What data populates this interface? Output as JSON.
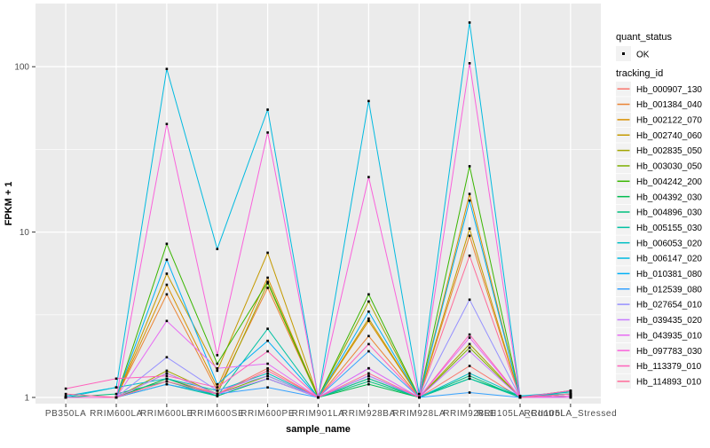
{
  "chart_data": {
    "type": "line",
    "title": "",
    "xlabel": "sample_name",
    "ylabel": "FPKM + 1",
    "y_scale": "log10",
    "y_ticks": [
      "1",
      "10",
      "100"
    ],
    "y_tick_values": [
      1,
      10,
      100
    ],
    "y_minor_values": [
      3.162,
      31.62
    ],
    "ylim": [
      1,
      240
    ],
    "grid": "white major+minor gridlines on gray panel",
    "legend_position": "right",
    "point_marker": "small black square on every data point",
    "x_categories": [
      "PB350LA",
      "RRIM600LA",
      "RRIM600LE",
      "RRIM600SE",
      "RRIM600PE",
      "RRIM901LA",
      "RRIM928BA",
      "RRIM928LA",
      "RRIM928LE",
      "RRII105LA_Control",
      "RRII105LA_Stressed"
    ],
    "legend_quant": {
      "title": "quant_status",
      "items": [
        {
          "label": "OK",
          "marker": "point"
        }
      ]
    },
    "legend_tracking_title": "tracking_id",
    "series": [
      {
        "name": "Hb_000907_130",
        "color": "#F8766D",
        "values": [
          1.0,
          1.0,
          1.3,
          1.05,
          1.5,
          1.0,
          1.35,
          1.0,
          1.55,
          1.0,
          1.02
        ]
      },
      {
        "name": "Hb_001384_040",
        "color": "#EA8331",
        "values": [
          1.0,
          1.0,
          4.2,
          1.1,
          4.6,
          1.0,
          2.35,
          1.0,
          9.5,
          1.0,
          1.02
        ]
      },
      {
        "name": "Hb_002122_070",
        "color": "#D89000",
        "values": [
          1.0,
          1.0,
          4.8,
          1.15,
          5.3,
          1.0,
          2.9,
          1.0,
          17.0,
          1.0,
          1.02
        ]
      },
      {
        "name": "Hb_002740_060",
        "color": "#C49A00",
        "values": [
          1.0,
          1.0,
          5.6,
          1.45,
          7.5,
          1.0,
          3.0,
          1.0,
          10.5,
          1.0,
          1.02
        ]
      },
      {
        "name": "Hb_002835_050",
        "color": "#A3A500",
        "values": [
          1.0,
          1.0,
          1.45,
          1.05,
          4.9,
          1.0,
          3.8,
          1.0,
          2.1,
          1.0,
          1.05
        ]
      },
      {
        "name": "Hb_003030_050",
        "color": "#7CAE00",
        "values": [
          1.0,
          1.0,
          1.4,
          1.05,
          1.35,
          1.0,
          1.3,
          1.0,
          2.0,
          1.0,
          1.05
        ]
      },
      {
        "name": "Hb_004242_200",
        "color": "#39B600",
        "values": [
          1.0,
          1.0,
          8.5,
          1.6,
          5.0,
          1.0,
          4.2,
          1.0,
          25.0,
          1.0,
          1.1
        ]
      },
      {
        "name": "Hb_004392_030",
        "color": "#00BB4E",
        "values": [
          1.0,
          1.0,
          1.3,
          1.02,
          1.3,
          1.0,
          1.2,
          1.0,
          1.3,
          1.02,
          1.05
        ]
      },
      {
        "name": "Hb_004896_030",
        "color": "#00BF7D",
        "values": [
          1.0,
          1.05,
          1.25,
          1.02,
          1.3,
          1.0,
          1.25,
          1.0,
          1.35,
          1.0,
          1.08
        ]
      },
      {
        "name": "Hb_005155_030",
        "color": "#00C1A3",
        "values": [
          1.0,
          1.0,
          1.2,
          1.02,
          2.6,
          1.0,
          1.3,
          1.0,
          1.3,
          1.0,
          1.05
        ]
      },
      {
        "name": "Hb_006053_020",
        "color": "#00BFC4",
        "values": [
          1.0,
          1.15,
          1.3,
          1.1,
          1.4,
          1.0,
          1.35,
          1.0,
          1.4,
          1.02,
          1.08
        ]
      },
      {
        "name": "Hb_006147_020",
        "color": "#00BAE0",
        "values": [
          1.02,
          1.15,
          97.0,
          7.9,
          55.0,
          1.0,
          62.0,
          1.05,
          185.0,
          1.02,
          1.05
        ]
      },
      {
        "name": "Hb_010381_080",
        "color": "#00B0F6",
        "values": [
          1.0,
          1.0,
          6.8,
          1.2,
          2.2,
          1.0,
          3.3,
          1.0,
          15.5,
          1.0,
          1.02
        ]
      },
      {
        "name": "Hb_012539_080",
        "color": "#35A2FF",
        "values": [
          1.0,
          1.0,
          1.2,
          1.05,
          1.15,
          1.0,
          1.9,
          1.0,
          1.07,
          1.0,
          1.0
        ]
      },
      {
        "name": "Hb_027654_010",
        "color": "#9590FF",
        "values": [
          1.0,
          1.0,
          1.75,
          1.1,
          1.35,
          1.0,
          1.5,
          1.0,
          3.9,
          1.0,
          1.0
        ]
      },
      {
        "name": "Hb_039435_020",
        "color": "#C77CFF",
        "values": [
          1.0,
          1.0,
          1.4,
          1.05,
          1.3,
          1.0,
          1.35,
          1.0,
          1.9,
          1.0,
          1.0
        ]
      },
      {
        "name": "Hb_043935_010",
        "color": "#E76BF3",
        "values": [
          1.0,
          1.0,
          2.9,
          1.5,
          1.6,
          1.0,
          1.5,
          1.0,
          2.3,
          1.0,
          1.0
        ]
      },
      {
        "name": "Hb_097783_030",
        "color": "#FA62DB",
        "values": [
          1.0,
          1.0,
          45.0,
          1.8,
          40.0,
          1.0,
          21.5,
          1.0,
          105.0,
          1.0,
          1.02
        ]
      },
      {
        "name": "Hb_113379_010",
        "color": "#FF62BC",
        "values": [
          1.13,
          1.3,
          1.35,
          1.15,
          1.9,
          1.0,
          2.1,
          1.0,
          2.4,
          1.0,
          1.1
        ]
      },
      {
        "name": "Hb_114893_010",
        "color": "#FF6A98",
        "values": [
          1.05,
          1.0,
          1.25,
          1.05,
          1.45,
          1.0,
          1.4,
          1.0,
          7.2,
          1.0,
          1.05
        ]
      }
    ]
  },
  "colors": {
    "panel_bg": "#EBEBEB",
    "gridline": "#FFFFFF",
    "figure_bg": "#FFFFFF",
    "tick_label": "#4D4D4D",
    "axis_title": "#000000",
    "legend_key_bg": "#F2F2F2",
    "point": "#000000",
    "tick_mark": "#333333"
  }
}
